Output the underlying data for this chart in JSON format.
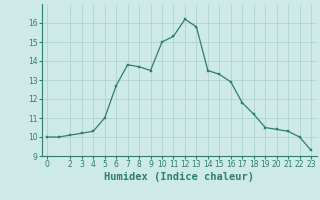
{
  "x": [
    0,
    1,
    2,
    3,
    4,
    5,
    6,
    7,
    8,
    9,
    10,
    11,
    12,
    13,
    14,
    15,
    16,
    17,
    18,
    19,
    20,
    21,
    22,
    23
  ],
  "y": [
    10.0,
    10.0,
    10.1,
    10.2,
    10.3,
    11.0,
    12.7,
    13.8,
    13.7,
    13.5,
    15.0,
    15.3,
    16.2,
    15.8,
    13.5,
    13.3,
    12.9,
    11.8,
    11.2,
    10.5,
    10.4,
    10.3,
    10.0,
    9.3
  ],
  "line_color": "#2e7d6e",
  "marker": "s",
  "marker_size": 1.8,
  "bg_color": "#ceeae8",
  "grid_color": "#aed4d2",
  "xlabel": "Humidex (Indice chaleur)",
  "xlim": [
    -0.5,
    23.5
  ],
  "ylim": [
    9,
    17
  ],
  "yticks": [
    9,
    10,
    11,
    12,
    13,
    14,
    15,
    16
  ],
  "xticks": [
    0,
    2,
    3,
    4,
    5,
    6,
    7,
    8,
    9,
    10,
    11,
    12,
    13,
    14,
    15,
    16,
    17,
    18,
    19,
    20,
    21,
    22,
    23
  ],
  "tick_labelsize": 5.5,
  "xlabel_fontsize": 7.5
}
